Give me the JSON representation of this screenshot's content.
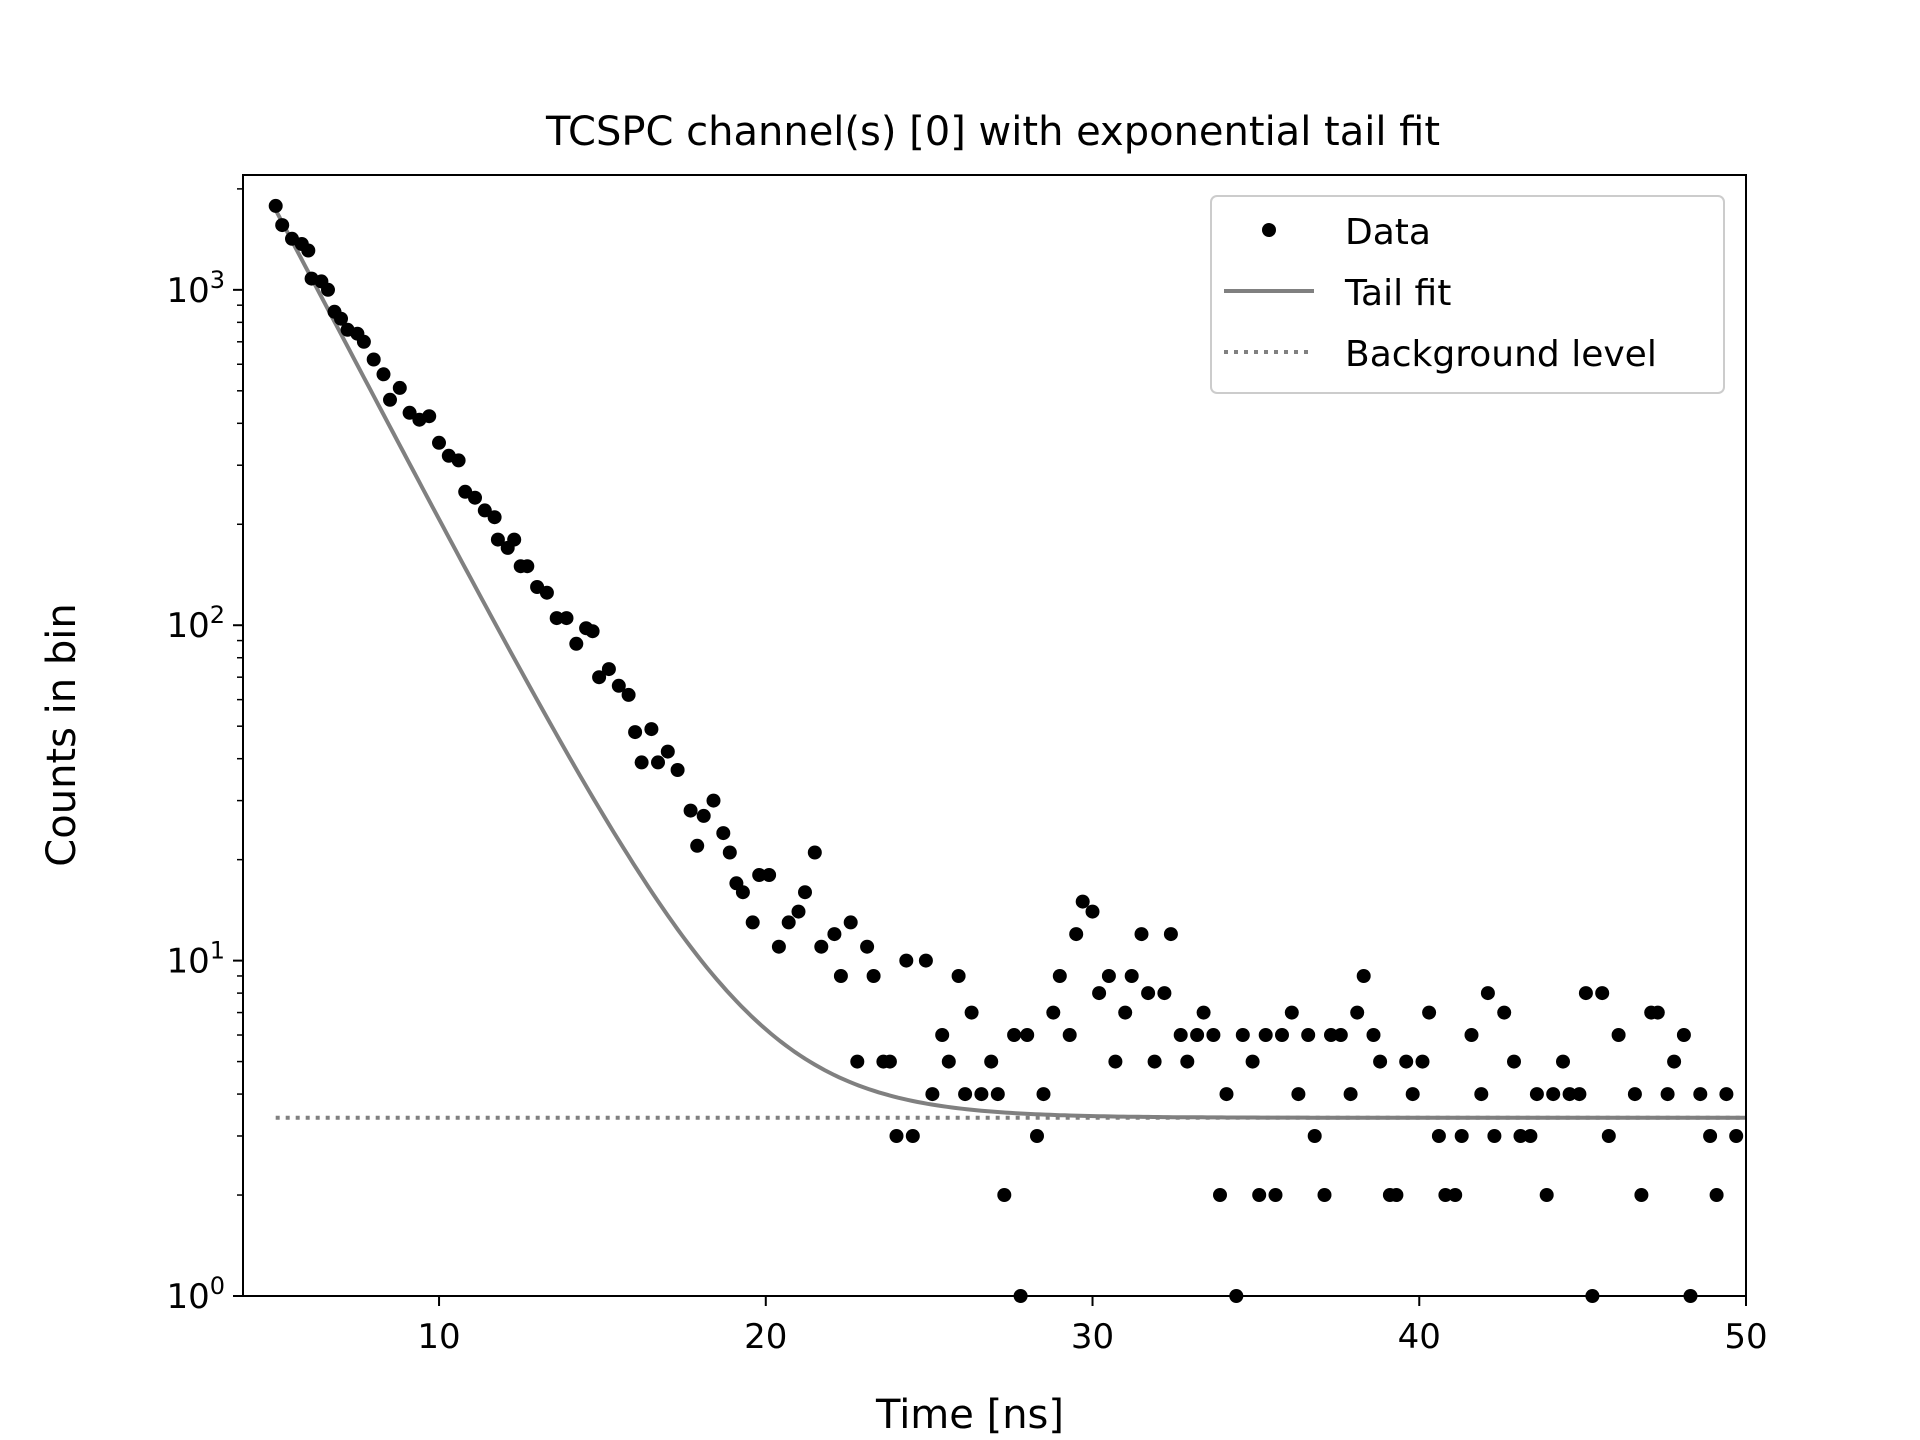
{
  "chart_data": {
    "type": "scatter",
    "title": "TCSPC channel(s) [0] with exponential tail fit",
    "xlabel": "Time [ns]",
    "ylabel": "Counts in bin",
    "xlim": [
      4.0,
      50.0
    ],
    "ylim": [
      1,
      2200
    ],
    "yscale": "log",
    "grid": false,
    "legend_position": "top-right",
    "x_ticks": [
      {
        "value": 10,
        "label": "10"
      },
      {
        "value": 20,
        "label": "20"
      },
      {
        "value": 30,
        "label": "30"
      },
      {
        "value": 40,
        "label": "40"
      },
      {
        "value": 50,
        "label": "50"
      }
    ],
    "y_ticks": [
      {
        "value": 1,
        "base": "10",
        "exp": "0"
      },
      {
        "value": 10,
        "base": "10",
        "exp": "1"
      },
      {
        "value": 100,
        "base": "10",
        "exp": "2"
      },
      {
        "value": 1000,
        "base": "10",
        "exp": "3"
      }
    ],
    "series": [
      {
        "name": "Data",
        "kind": "scatter",
        "color": "#000000",
        "points": [
          [
            5.0,
            1780
          ],
          [
            5.2,
            1560
          ],
          [
            5.5,
            1420
          ],
          [
            5.8,
            1370
          ],
          [
            6.0,
            1310
          ],
          [
            6.1,
            1080
          ],
          [
            6.4,
            1060
          ],
          [
            6.6,
            1000
          ],
          [
            6.8,
            860
          ],
          [
            7.0,
            820
          ],
          [
            7.2,
            760
          ],
          [
            7.5,
            740
          ],
          [
            7.7,
            700
          ],
          [
            8.0,
            620
          ],
          [
            8.3,
            560
          ],
          [
            8.5,
            470
          ],
          [
            8.8,
            510
          ],
          [
            9.1,
            430
          ],
          [
            9.4,
            410
          ],
          [
            9.7,
            420
          ],
          [
            10.0,
            350
          ],
          [
            10.3,
            320
          ],
          [
            10.6,
            310
          ],
          [
            10.8,
            250
          ],
          [
            11.1,
            240
          ],
          [
            11.4,
            220
          ],
          [
            11.7,
            210
          ],
          [
            11.8,
            180
          ],
          [
            12.1,
            170
          ],
          [
            12.3,
            180
          ],
          [
            12.5,
            150
          ],
          [
            12.7,
            150
          ],
          [
            13.0,
            130
          ],
          [
            13.3,
            125
          ],
          [
            13.6,
            105
          ],
          [
            13.9,
            105
          ],
          [
            14.2,
            88
          ],
          [
            14.5,
            98
          ],
          [
            14.7,
            96
          ],
          [
            14.9,
            70
          ],
          [
            15.2,
            74
          ],
          [
            15.5,
            66
          ],
          [
            15.8,
            62
          ],
          [
            16.0,
            48
          ],
          [
            16.2,
            39
          ],
          [
            16.5,
            49
          ],
          [
            16.7,
            39
          ],
          [
            17.0,
            42
          ],
          [
            17.3,
            37
          ],
          [
            17.7,
            28
          ],
          [
            17.9,
            22
          ],
          [
            18.1,
            27
          ],
          [
            18.4,
            30
          ],
          [
            18.7,
            24
          ],
          [
            18.9,
            21
          ],
          [
            19.1,
            17
          ],
          [
            19.3,
            16
          ],
          [
            19.6,
            13
          ],
          [
            19.8,
            18
          ],
          [
            20.1,
            18
          ],
          [
            20.4,
            11
          ],
          [
            20.7,
            13
          ],
          [
            21.0,
            14
          ],
          [
            21.2,
            16
          ],
          [
            21.5,
            21
          ],
          [
            21.7,
            11
          ],
          [
            22.1,
            12
          ],
          [
            22.3,
            9
          ],
          [
            22.6,
            13
          ],
          [
            22.8,
            5
          ],
          [
            23.1,
            11
          ],
          [
            23.3,
            9
          ],
          [
            23.6,
            5
          ],
          [
            23.8,
            5
          ],
          [
            24.0,
            3
          ],
          [
            24.3,
            10
          ],
          [
            24.5,
            3
          ],
          [
            24.9,
            10
          ],
          [
            25.1,
            4
          ],
          [
            25.4,
            6
          ],
          [
            25.6,
            5
          ],
          [
            25.9,
            9
          ],
          [
            26.1,
            4
          ],
          [
            26.3,
            7
          ],
          [
            26.6,
            4
          ],
          [
            26.9,
            5
          ],
          [
            27.1,
            4
          ],
          [
            27.3,
            2
          ],
          [
            27.6,
            6
          ],
          [
            27.8,
            1
          ],
          [
            28.0,
            6
          ],
          [
            28.3,
            3
          ],
          [
            28.5,
            4
          ],
          [
            28.8,
            7
          ],
          [
            29.0,
            9
          ],
          [
            29.3,
            6
          ],
          [
            29.5,
            12
          ],
          [
            29.7,
            15
          ],
          [
            30.0,
            14
          ],
          [
            30.2,
            8
          ],
          [
            30.5,
            9
          ],
          [
            30.7,
            5
          ],
          [
            31.0,
            7
          ],
          [
            31.2,
            9
          ],
          [
            31.5,
            12
          ],
          [
            31.7,
            8
          ],
          [
            31.9,
            5
          ],
          [
            32.2,
            8
          ],
          [
            32.4,
            12
          ],
          [
            32.7,
            6
          ],
          [
            32.9,
            5
          ],
          [
            33.2,
            6
          ],
          [
            33.4,
            7
          ],
          [
            33.7,
            6
          ],
          [
            33.9,
            2
          ],
          [
            34.1,
            4
          ],
          [
            34.4,
            1
          ],
          [
            34.6,
            6
          ],
          [
            34.9,
            5
          ],
          [
            35.1,
            2
          ],
          [
            35.3,
            6
          ],
          [
            35.6,
            2
          ],
          [
            35.8,
            6
          ],
          [
            36.1,
            7
          ],
          [
            36.3,
            4
          ],
          [
            36.6,
            6
          ],
          [
            36.8,
            3
          ],
          [
            37.1,
            2
          ],
          [
            37.3,
            6
          ],
          [
            37.6,
            6
          ],
          [
            37.9,
            4
          ],
          [
            38.1,
            7
          ],
          [
            38.3,
            9
          ],
          [
            38.6,
            6
          ],
          [
            38.8,
            5
          ],
          [
            39.1,
            2
          ],
          [
            39.3,
            2
          ],
          [
            39.6,
            5
          ],
          [
            39.8,
            4
          ],
          [
            40.1,
            5
          ],
          [
            40.3,
            7
          ],
          [
            40.6,
            3
          ],
          [
            40.8,
            2
          ],
          [
            41.1,
            2
          ],
          [
            41.3,
            3
          ],
          [
            41.6,
            6
          ],
          [
            41.9,
            4
          ],
          [
            42.1,
            8
          ],
          [
            42.3,
            3
          ],
          [
            42.6,
            7
          ],
          [
            42.9,
            5
          ],
          [
            43.1,
            3
          ],
          [
            43.4,
            3
          ],
          [
            43.6,
            4
          ],
          [
            43.9,
            2
          ],
          [
            44.1,
            4
          ],
          [
            44.4,
            5
          ],
          [
            44.6,
            4
          ],
          [
            44.9,
            4
          ],
          [
            45.1,
            8
          ],
          [
            45.3,
            1
          ],
          [
            45.6,
            8
          ],
          [
            45.8,
            3
          ],
          [
            46.1,
            6
          ],
          [
            46.6,
            4
          ],
          [
            46.8,
            2
          ],
          [
            47.1,
            7
          ],
          [
            47.3,
            7
          ],
          [
            47.6,
            4
          ],
          [
            47.8,
            5
          ],
          [
            48.1,
            6
          ],
          [
            48.3,
            1
          ],
          [
            48.6,
            4
          ],
          [
            48.9,
            3
          ],
          [
            49.1,
            2
          ],
          [
            49.4,
            4
          ],
          [
            49.7,
            3
          ]
        ]
      },
      {
        "name": "Tail fit",
        "kind": "line",
        "color": "#808080",
        "model": "A*exp(-(x - x0)/tau) + B",
        "params": {
          "A": 1726.6,
          "x0": 5.0,
          "tau": 2.34,
          "B": 3.4
        },
        "x_range": [
          5.0,
          50.0
        ]
      },
      {
        "name": "Background level",
        "kind": "hline",
        "color": "#808080",
        "style": "dotted",
        "y": 3.4,
        "x_range": [
          5.0,
          50.0
        ]
      }
    ]
  }
}
